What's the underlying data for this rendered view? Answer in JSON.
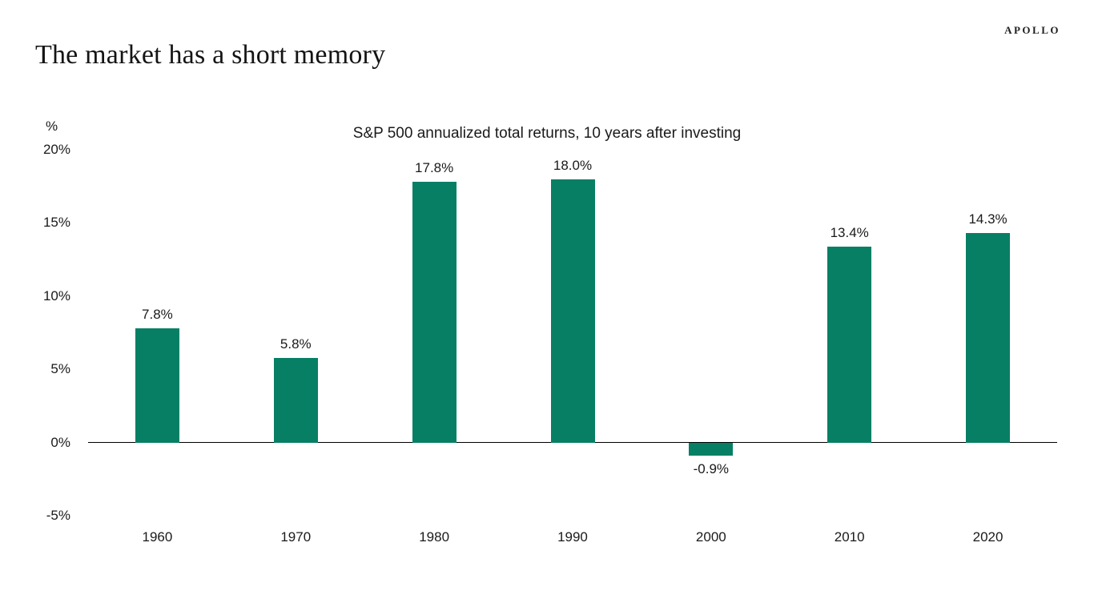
{
  "header": {
    "brand": "APOLLO",
    "title": "The market has a short memory"
  },
  "chart_data": {
    "type": "bar",
    "title": "S&P 500 annualized total returns, 10 years after investing",
    "unit_label": "%",
    "categories": [
      "1960",
      "1970",
      "1980",
      "1990",
      "2000",
      "2010",
      "2020"
    ],
    "values": [
      7.8,
      5.8,
      17.8,
      18.0,
      -0.9,
      13.4,
      14.3
    ],
    "bar_labels": [
      "7.8%",
      "5.8%",
      "17.8%",
      "18.0%",
      "-0.9%",
      "13.4%",
      "14.3%"
    ],
    "xlabel": "",
    "ylabel": "%",
    "ylim": [
      -5,
      20
    ],
    "ytick_values": [
      20,
      15,
      10,
      5,
      0,
      -5
    ],
    "ytick_labels": [
      "20%",
      "15%",
      "10%",
      "5%",
      "0%",
      "-5%"
    ],
    "grid": false,
    "legend": "none",
    "colors": {
      "bar": "#077f64",
      "axis": "#000000",
      "text": "#1a1a1a",
      "background": "#ffffff"
    }
  }
}
